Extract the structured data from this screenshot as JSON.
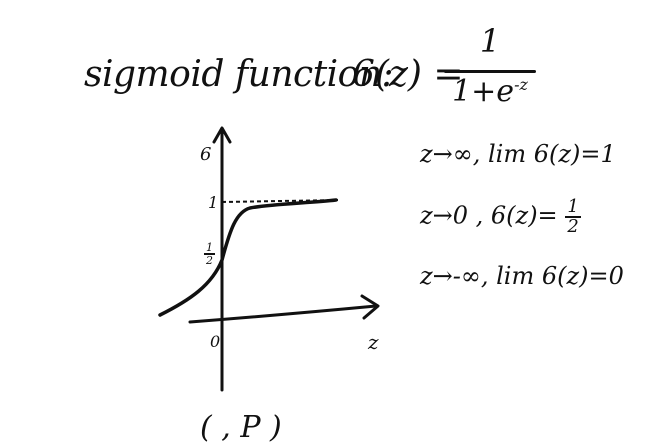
{
  "title": {
    "label": "sigmoid function:",
    "lhs": "6(z) =",
    "numerator": "1",
    "denominator_base": "1+e",
    "denominator_exponent": "-z"
  },
  "graph": {
    "y_axis_label": "6",
    "x_axis_label": "z",
    "y_tick_one": "1",
    "y_tick_half_num": "1",
    "y_tick_half_den": "2",
    "origin_label": "0"
  },
  "limits": [
    {
      "text": "z→∞, lim 6(z)=1"
    },
    {
      "prefix": "z→0 , 6(z)=",
      "frac_num": "1",
      "frac_den": "2"
    },
    {
      "text": "z→-∞, lim 6(z)=0"
    }
  ],
  "bottom": {
    "partial_text": "( ,   P         )"
  }
}
